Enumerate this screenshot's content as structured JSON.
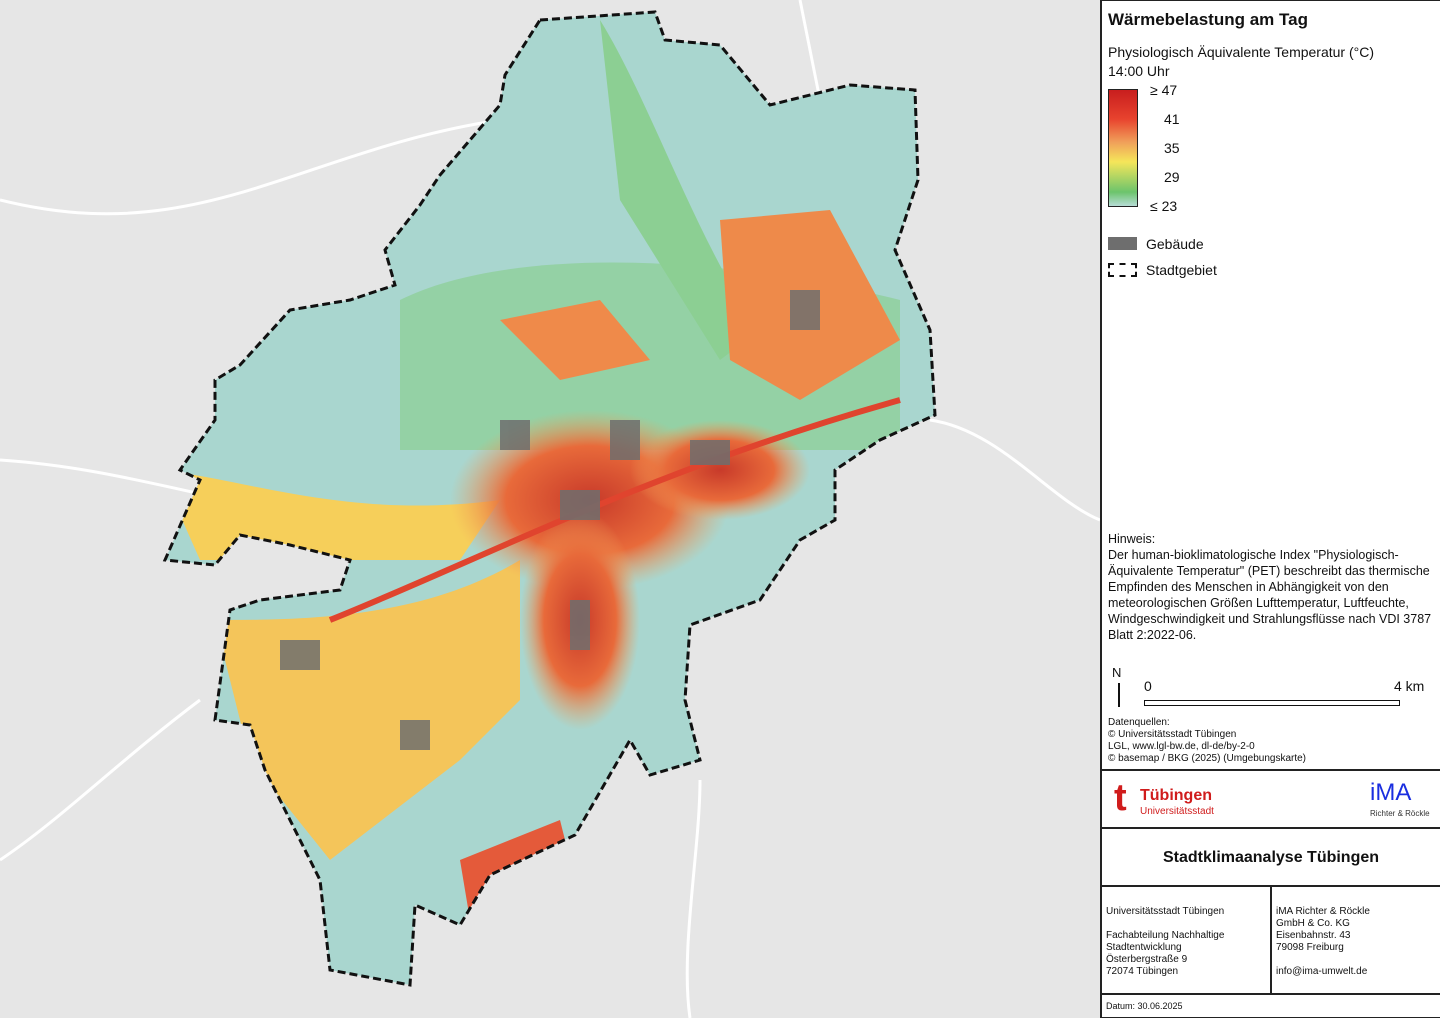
{
  "legend": {
    "title": "Wärmebelastung am Tag",
    "subtitle": "Physiologisch Äquivalente Temperatur (°C)",
    "time": "14:00 Uhr",
    "ticks": [
      "≥ 47",
      "41",
      "35",
      "29",
      "≤ 23"
    ],
    "colors": [
      "#c81e1e",
      "#e8432e",
      "#f5e65a",
      "#6cc46c",
      "#b6dcd6"
    ],
    "buildings": "Gebäude",
    "boundary": "Stadtgebiet"
  },
  "hint": {
    "heading": "Hinweis:",
    "text": "Der human-bioklimatologische Index \"Physiologisch-Äquivalente Temperatur\" (PET) beschreibt das thermische Empfinden des Menschen in Abhängigkeit von den meteorologischen Größen Lufttemperatur, Luftfeuchte, Windgeschwindigkeit und Strahlungsflüsse nach VDI 3787 Blatt 2:2022-06."
  },
  "scale": {
    "north": "N",
    "start": "0",
    "end": "4 km"
  },
  "sources": [
    "Datenquellen:",
    "© Universitätsstadt Tübingen",
    "LGL, www.lgl-bw.de, dl-de/by-2-0",
    "© basemap / BKG (2025) (Umgebungskarte)"
  ],
  "logos": {
    "tue_name": "Tübingen",
    "tue_sub": "Universitätsstadt",
    "ima_name": "iMA",
    "ima_sub": "Richter & Röckle"
  },
  "project_title": "Stadtklimaanalyse Tübingen",
  "contact_left": [
    "Universitätsstadt Tübingen",
    "",
    "Fachabteilung Nachhaltige",
    "Stadtentwicklung",
    "Österbergstraße 9",
    "72074 Tübingen"
  ],
  "contact_right": [
    "iMA Richter & Röckle",
    "GmbH & Co. KG",
    "Eisenbahnstr. 43",
    "79098 Freiburg",
    "",
    "info@ima-umwelt.de"
  ],
  "date": "Datum: 30.06.2025"
}
